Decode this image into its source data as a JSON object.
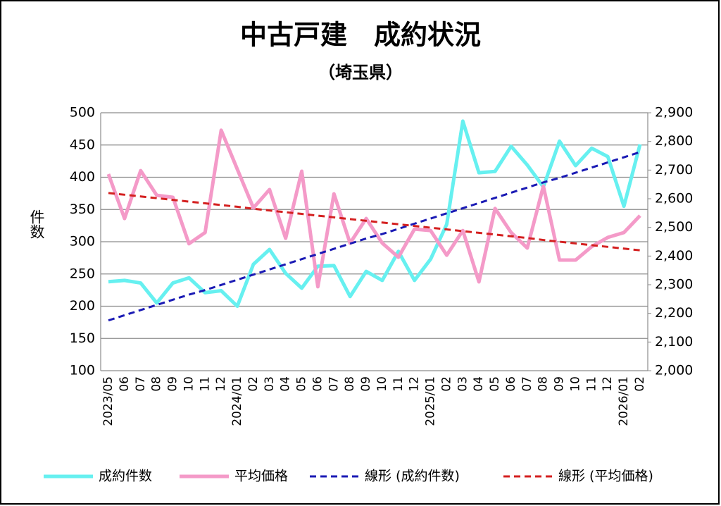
{
  "chart_data": {
    "type": "line",
    "title": "中古戸建　成約状況",
    "subtitle": "（埼玉県）",
    "y_label": "件数",
    "categories": [
      "2023/05",
      "06",
      "07",
      "08",
      "09",
      "10",
      "11",
      "12",
      "2024/01",
      "02",
      "03",
      "04",
      "05",
      "06",
      "07",
      "08",
      "09",
      "10",
      "11",
      "12",
      "2025/01",
      "02",
      "03",
      "04",
      "05",
      "06",
      "07",
      "08",
      "09",
      "10",
      "11",
      "12",
      "2026/01",
      "02"
    ],
    "ylim": [
      100,
      500
    ],
    "yticks": [
      100,
      150,
      200,
      250,
      300,
      350,
      400,
      450,
      500
    ],
    "y2lim": [
      2000,
      2900
    ],
    "y2ticks": [
      {
        "value": 2000,
        "label": "2,000"
      },
      {
        "value": 2100,
        "label": "2,100"
      },
      {
        "value": 2200,
        "label": "2,200"
      },
      {
        "value": 2300,
        "label": "2,300"
      },
      {
        "value": 2400,
        "label": "2,400"
      },
      {
        "value": 2500,
        "label": "2,500"
      },
      {
        "value": 2600,
        "label": "2,600"
      },
      {
        "value": 2700,
        "label": "2,700"
      },
      {
        "value": 2800,
        "label": "2,800"
      },
      {
        "value": 2900,
        "label": "2,900"
      }
    ],
    "grid": true,
    "legend": "bottom",
    "series": [
      {
        "name": "成約件数",
        "color": "#66f0f0",
        "axis": "y",
        "dashed": false,
        "values": [
          238,
          240,
          236,
          205,
          236,
          244,
          221,
          224,
          200,
          265,
          288,
          251,
          228,
          262,
          263,
          215,
          254,
          240,
          285,
          240,
          273,
          327,
          487,
          407,
          409,
          448,
          419,
          385,
          456,
          418,
          445,
          432,
          355,
          451
        ]
      },
      {
        "name": "平均価格",
        "color": "#f49ac8",
        "axis": "y2",
        "dashed": false,
        "values": [
          2686,
          2531,
          2698,
          2612,
          2605,
          2443,
          2482,
          2839,
          2703,
          2568,
          2632,
          2462,
          2696,
          2293,
          2617,
          2445,
          2531,
          2445,
          2396,
          2494,
          2489,
          2403,
          2489,
          2310,
          2566,
          2482,
          2428,
          2644,
          2386,
          2386,
          2433,
          2465,
          2482,
          2541
        ]
      },
      {
        "name": "線形 (成約件数)",
        "color": "#1a1ab4",
        "axis": "y",
        "dashed": true,
        "values": [
          178,
          186,
          194,
          202,
          210,
          218,
          225,
          233,
          241,
          249,
          257,
          265,
          273,
          281,
          289,
          297,
          305,
          312,
          320,
          328,
          336,
          344,
          352,
          360,
          368,
          376,
          384,
          392,
          399,
          407,
          415,
          423,
          431,
          439
        ]
      },
      {
        "name": "線形 (平均価格)",
        "color": "#d42020",
        "axis": "y2",
        "dashed": true,
        "values": [
          2620,
          2614,
          2608,
          2602,
          2596,
          2590,
          2584,
          2578,
          2572,
          2565,
          2559,
          2553,
          2547,
          2541,
          2535,
          2529,
          2523,
          2517,
          2511,
          2505,
          2499,
          2493,
          2487,
          2481,
          2475,
          2469,
          2463,
          2456,
          2450,
          2444,
          2438,
          2432,
          2426,
          2420
        ]
      }
    ]
  }
}
